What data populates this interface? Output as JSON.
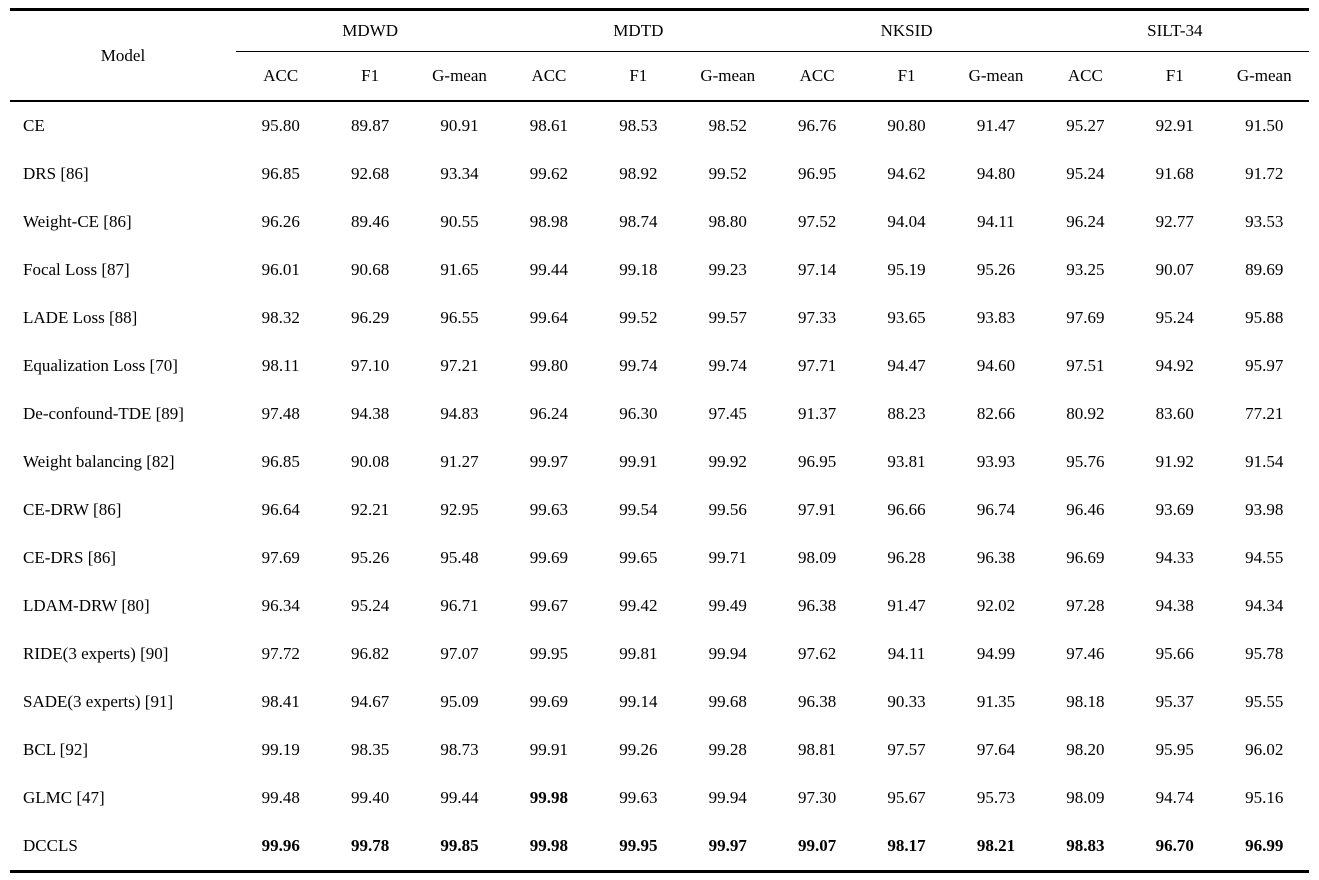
{
  "page": {
    "background_color": "#ffffff",
    "text_color": "#000000"
  },
  "table": {
    "corner_header": "Model",
    "groups": [
      {
        "label": "MDWD"
      },
      {
        "label": "MDTD"
      },
      {
        "label": "NKSID"
      },
      {
        "label": "SILT-34"
      }
    ],
    "sub_headers": [
      "ACC",
      "F1",
      "G-mean",
      "ACC",
      "F1",
      "G-mean",
      "ACC",
      "F1",
      "G-mean",
      "ACC",
      "F1",
      "G-mean"
    ],
    "rows": [
      {
        "model": "CE",
        "values": [
          "95.80",
          "89.87",
          "90.91",
          "98.61",
          "98.53",
          "98.52",
          "96.76",
          "90.80",
          "91.47",
          "95.27",
          "92.91",
          "91.50"
        ],
        "bold": []
      },
      {
        "model": "DRS [86]",
        "values": [
          "96.85",
          "92.68",
          "93.34",
          "99.62",
          "98.92",
          "99.52",
          "96.95",
          "94.62",
          "94.80",
          "95.24",
          "91.68",
          "91.72"
        ],
        "bold": []
      },
      {
        "model": "Weight-CE [86]",
        "values": [
          "96.26",
          "89.46",
          "90.55",
          "98.98",
          "98.74",
          "98.80",
          "97.52",
          "94.04",
          "94.11",
          "96.24",
          "92.77",
          "93.53"
        ],
        "bold": []
      },
      {
        "model": "Focal Loss [87]",
        "values": [
          "96.01",
          "90.68",
          "91.65",
          "99.44",
          "99.18",
          "99.23",
          "97.14",
          "95.19",
          "95.26",
          "93.25",
          "90.07",
          "89.69"
        ],
        "bold": []
      },
      {
        "model": "LADE Loss [88]",
        "values": [
          "98.32",
          "96.29",
          "96.55",
          "99.64",
          "99.52",
          "99.57",
          "97.33",
          "93.65",
          "93.83",
          "97.69",
          "95.24",
          "95.88"
        ],
        "bold": []
      },
      {
        "model": "Equalization Loss [70]",
        "values": [
          "98.11",
          "97.10",
          "97.21",
          "99.80",
          "99.74",
          "99.74",
          "97.71",
          "94.47",
          "94.60",
          "97.51",
          "94.92",
          "95.97"
        ],
        "bold": []
      },
      {
        "model": "De-confound-TDE [89]",
        "values": [
          "97.48",
          "94.38",
          "94.83",
          "96.24",
          "96.30",
          "97.45",
          "91.37",
          "88.23",
          "82.66",
          "80.92",
          "83.60",
          "77.21"
        ],
        "bold": []
      },
      {
        "model": "Weight balancing [82]",
        "values": [
          "96.85",
          "90.08",
          "91.27",
          "99.97",
          "99.91",
          "99.92",
          "96.95",
          "93.81",
          "93.93",
          "95.76",
          "91.92",
          "91.54"
        ],
        "bold": []
      },
      {
        "model": "CE-DRW [86]",
        "values": [
          "96.64",
          "92.21",
          "92.95",
          "99.63",
          "99.54",
          "99.56",
          "97.91",
          "96.66",
          "96.74",
          "96.46",
          "93.69",
          "93.98"
        ],
        "bold": []
      },
      {
        "model": "CE-DRS [86]",
        "values": [
          "97.69",
          "95.26",
          "95.48",
          "99.69",
          "99.65",
          "99.71",
          "98.09",
          "96.28",
          "96.38",
          "96.69",
          "94.33",
          "94.55"
        ],
        "bold": []
      },
      {
        "model": "LDAM-DRW [80]",
        "values": [
          "96.34",
          "95.24",
          "96.71",
          "99.67",
          "99.42",
          "99.49",
          "96.38",
          "91.47",
          "92.02",
          "97.28",
          "94.38",
          "94.34"
        ],
        "bold": []
      },
      {
        "model": "RIDE(3 experts) [90]",
        "values": [
          "97.72",
          "96.82",
          "97.07",
          "99.95",
          "99.81",
          "99.94",
          "97.62",
          "94.11",
          "94.99",
          "97.46",
          "95.66",
          "95.78"
        ],
        "bold": []
      },
      {
        "model": "SADE(3 experts) [91]",
        "values": [
          "98.41",
          "94.67",
          "95.09",
          "99.69",
          "99.14",
          "99.68",
          "96.38",
          "90.33",
          "91.35",
          "98.18",
          "95.37",
          "95.55"
        ],
        "bold": []
      },
      {
        "model": "BCL [92]",
        "values": [
          "99.19",
          "98.35",
          "98.73",
          "99.91",
          "99.26",
          "99.28",
          "98.81",
          "97.57",
          "97.64",
          "98.20",
          "95.95",
          "96.02"
        ],
        "bold": []
      },
      {
        "model": "GLMC [47]",
        "values": [
          "99.48",
          "99.40",
          "99.44",
          "99.98",
          "99.63",
          "99.94",
          "97.30",
          "95.67",
          "95.73",
          "98.09",
          "94.74",
          "95.16"
        ],
        "bold": [
          3
        ]
      },
      {
        "model": "DCCLS",
        "values": [
          "99.96",
          "99.78",
          "99.85",
          "99.98",
          "99.95",
          "99.97",
          "99.07",
          "98.17",
          "98.21",
          "98.83",
          "96.70",
          "96.99"
        ],
        "bold": [
          0,
          1,
          2,
          3,
          4,
          5,
          6,
          7,
          8,
          9,
          10,
          11
        ]
      }
    ]
  }
}
